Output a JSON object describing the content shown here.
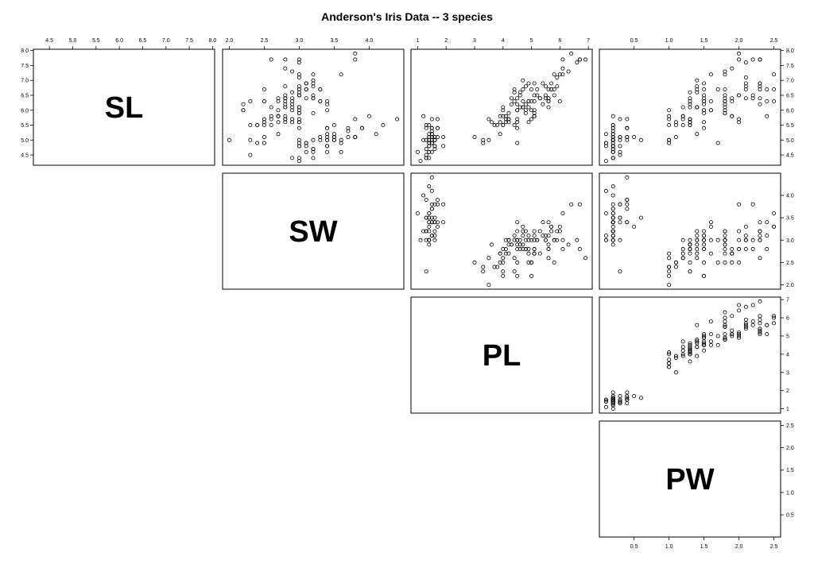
{
  "chart_data": {
    "type": "scatter",
    "title": "Anderson's Iris Data -- 3 species",
    "grid": false,
    "variables": [
      {
        "key": "SL",
        "label": "SL",
        "lim": [
          4.3,
          7.9
        ],
        "ticks": [
          4.5,
          5.0,
          5.5,
          6.0,
          6.5,
          7.0,
          7.5,
          8.0
        ],
        "tick_labels": [
          "4.5",
          "5.0",
          "5.5",
          "6.0",
          "6.5",
          "7.0",
          "7.5",
          "8.0"
        ]
      },
      {
        "key": "SW",
        "label": "SW",
        "lim": [
          2.0,
          4.4
        ],
        "ticks": [
          2.0,
          2.5,
          3.0,
          3.5,
          4.0
        ],
        "tick_labels": [
          "2.0",
          "2.5",
          "3.0",
          "3.5",
          "4.0"
        ]
      },
      {
        "key": "PL",
        "label": "PL",
        "lim": [
          1.0,
          6.9
        ],
        "ticks": [
          1,
          2,
          3,
          4,
          5,
          6,
          7
        ],
        "tick_labels": [
          "1",
          "2",
          "3",
          "4",
          "5",
          "6",
          "7"
        ]
      },
      {
        "key": "PW",
        "label": "PW",
        "lim": [
          0.1,
          2.5
        ],
        "ticks": [
          0.5,
          1.0,
          1.5,
          2.0,
          2.5
        ],
        "tick_labels": [
          "0.5",
          "1.0",
          "1.5",
          "2.0",
          "2.5"
        ]
      }
    ],
    "observations": [
      [
        5.1,
        3.5,
        1.4,
        0.2
      ],
      [
        4.9,
        3.0,
        1.4,
        0.2
      ],
      [
        4.7,
        3.2,
        1.3,
        0.2
      ],
      [
        4.6,
        3.1,
        1.5,
        0.2
      ],
      [
        5.0,
        3.6,
        1.4,
        0.2
      ],
      [
        5.4,
        3.9,
        1.7,
        0.4
      ],
      [
        4.6,
        3.4,
        1.4,
        0.3
      ],
      [
        5.0,
        3.4,
        1.5,
        0.2
      ],
      [
        4.4,
        2.9,
        1.4,
        0.2
      ],
      [
        4.9,
        3.1,
        1.5,
        0.1
      ],
      [
        5.4,
        3.7,
        1.5,
        0.2
      ],
      [
        4.8,
        3.4,
        1.6,
        0.2
      ],
      [
        4.8,
        3.0,
        1.4,
        0.1
      ],
      [
        4.3,
        3.0,
        1.1,
        0.1
      ],
      [
        5.8,
        4.0,
        1.2,
        0.2
      ],
      [
        5.7,
        4.4,
        1.5,
        0.4
      ],
      [
        5.4,
        3.9,
        1.3,
        0.4
      ],
      [
        5.1,
        3.5,
        1.4,
        0.3
      ],
      [
        5.7,
        3.8,
        1.7,
        0.3
      ],
      [
        5.1,
        3.8,
        1.5,
        0.3
      ],
      [
        5.4,
        3.4,
        1.7,
        0.2
      ],
      [
        5.1,
        3.7,
        1.5,
        0.4
      ],
      [
        4.6,
        3.6,
        1.0,
        0.2
      ],
      [
        5.1,
        3.3,
        1.7,
        0.5
      ],
      [
        4.8,
        3.4,
        1.9,
        0.2
      ],
      [
        5.0,
        3.0,
        1.6,
        0.2
      ],
      [
        5.0,
        3.4,
        1.6,
        0.4
      ],
      [
        5.2,
        3.5,
        1.5,
        0.2
      ],
      [
        5.2,
        3.4,
        1.4,
        0.2
      ],
      [
        4.7,
        3.2,
        1.6,
        0.2
      ],
      [
        4.8,
        3.1,
        1.6,
        0.2
      ],
      [
        5.4,
        3.4,
        1.5,
        0.4
      ],
      [
        5.2,
        4.1,
        1.5,
        0.1
      ],
      [
        5.5,
        4.2,
        1.4,
        0.2
      ],
      [
        4.9,
        3.1,
        1.5,
        0.2
      ],
      [
        5.0,
        3.2,
        1.2,
        0.2
      ],
      [
        5.5,
        3.5,
        1.3,
        0.2
      ],
      [
        4.9,
        3.6,
        1.4,
        0.1
      ],
      [
        4.4,
        3.0,
        1.3,
        0.2
      ],
      [
        5.1,
        3.4,
        1.5,
        0.2
      ],
      [
        5.0,
        3.5,
        1.3,
        0.3
      ],
      [
        4.5,
        2.3,
        1.3,
        0.3
      ],
      [
        4.4,
        3.2,
        1.3,
        0.2
      ],
      [
        5.0,
        3.5,
        1.6,
        0.6
      ],
      [
        5.1,
        3.8,
        1.9,
        0.4
      ],
      [
        4.8,
        3.0,
        1.4,
        0.3
      ],
      [
        5.1,
        3.8,
        1.6,
        0.2
      ],
      [
        4.6,
        3.2,
        1.4,
        0.2
      ],
      [
        5.3,
        3.7,
        1.5,
        0.2
      ],
      [
        5.0,
        3.3,
        1.4,
        0.2
      ],
      [
        7.0,
        3.2,
        4.7,
        1.4
      ],
      [
        6.4,
        3.2,
        4.5,
        1.5
      ],
      [
        6.9,
        3.1,
        4.9,
        1.5
      ],
      [
        5.5,
        2.3,
        4.0,
        1.3
      ],
      [
        6.5,
        2.8,
        4.6,
        1.5
      ],
      [
        5.7,
        2.8,
        4.5,
        1.3
      ],
      [
        6.3,
        3.3,
        4.7,
        1.6
      ],
      [
        4.9,
        2.4,
        3.3,
        1.0
      ],
      [
        6.6,
        2.9,
        4.6,
        1.3
      ],
      [
        5.2,
        2.7,
        3.9,
        1.4
      ],
      [
        5.0,
        2.0,
        3.5,
        1.0
      ],
      [
        5.9,
        3.0,
        4.2,
        1.5
      ],
      [
        6.0,
        2.2,
        4.0,
        1.0
      ],
      [
        6.1,
        2.9,
        4.7,
        1.4
      ],
      [
        5.6,
        2.9,
        3.6,
        1.3
      ],
      [
        6.7,
        3.1,
        4.4,
        1.4
      ],
      [
        5.6,
        3.0,
        4.5,
        1.5
      ],
      [
        5.8,
        2.7,
        4.1,
        1.0
      ],
      [
        6.2,
        2.2,
        4.5,
        1.5
      ],
      [
        5.6,
        2.5,
        3.9,
        1.1
      ],
      [
        5.9,
        3.2,
        4.8,
        1.8
      ],
      [
        6.1,
        2.8,
        4.0,
        1.3
      ],
      [
        6.3,
        2.5,
        4.9,
        1.5
      ],
      [
        6.1,
        2.8,
        4.7,
        1.2
      ],
      [
        6.4,
        2.9,
        4.3,
        1.3
      ],
      [
        6.6,
        3.0,
        4.4,
        1.4
      ],
      [
        6.8,
        2.8,
        4.8,
        1.4
      ],
      [
        6.7,
        3.0,
        5.0,
        1.7
      ],
      [
        6.0,
        2.9,
        4.5,
        1.5
      ],
      [
        5.7,
        2.6,
        3.5,
        1.0
      ],
      [
        5.5,
        2.4,
        3.8,
        1.1
      ],
      [
        5.5,
        2.4,
        3.7,
        1.0
      ],
      [
        5.8,
        2.7,
        3.9,
        1.2
      ],
      [
        6.0,
        2.7,
        5.1,
        1.6
      ],
      [
        5.4,
        3.0,
        4.5,
        1.5
      ],
      [
        6.0,
        3.4,
        4.5,
        1.6
      ],
      [
        6.7,
        3.1,
        4.7,
        1.5
      ],
      [
        6.3,
        2.3,
        4.4,
        1.3
      ],
      [
        5.6,
        3.0,
        4.1,
        1.3
      ],
      [
        5.5,
        2.5,
        4.0,
        1.3
      ],
      [
        5.5,
        2.6,
        4.4,
        1.2
      ],
      [
        6.1,
        3.0,
        4.6,
        1.4
      ],
      [
        5.8,
        2.6,
        4.0,
        1.2
      ],
      [
        5.0,
        2.3,
        3.3,
        1.0
      ],
      [
        5.6,
        2.7,
        4.2,
        1.3
      ],
      [
        5.7,
        3.0,
        4.2,
        1.2
      ],
      [
        5.7,
        2.9,
        4.2,
        1.3
      ],
      [
        6.2,
        2.9,
        4.3,
        1.3
      ],
      [
        5.1,
        2.5,
        3.0,
        1.1
      ],
      [
        5.7,
        2.8,
        4.1,
        1.3
      ],
      [
        6.3,
        3.3,
        6.0,
        2.5
      ],
      [
        5.8,
        2.7,
        5.1,
        1.9
      ],
      [
        7.1,
        3.0,
        5.9,
        2.1
      ],
      [
        6.3,
        2.9,
        5.6,
        1.8
      ],
      [
        6.5,
        3.0,
        5.8,
        2.2
      ],
      [
        7.6,
        3.0,
        6.6,
        2.1
      ],
      [
        4.9,
        2.5,
        4.5,
        1.7
      ],
      [
        7.3,
        2.9,
        6.3,
        1.8
      ],
      [
        6.7,
        2.5,
        5.8,
        1.8
      ],
      [
        7.2,
        3.6,
        6.1,
        2.5
      ],
      [
        6.5,
        3.2,
        5.1,
        2.0
      ],
      [
        6.4,
        2.7,
        5.3,
        1.9
      ],
      [
        6.8,
        3.0,
        5.5,
        2.1
      ],
      [
        5.7,
        2.5,
        5.0,
        2.0
      ],
      [
        5.8,
        2.8,
        5.1,
        2.4
      ],
      [
        6.4,
        3.2,
        5.3,
        2.3
      ],
      [
        6.5,
        3.0,
        5.5,
        1.8
      ],
      [
        7.7,
        3.8,
        6.7,
        2.2
      ],
      [
        7.7,
        2.6,
        6.9,
        2.3
      ],
      [
        6.0,
        2.2,
        5.0,
        1.5
      ],
      [
        6.9,
        3.2,
        5.7,
        2.3
      ],
      [
        5.6,
        2.8,
        4.9,
        2.0
      ],
      [
        7.7,
        2.8,
        6.7,
        2.0
      ],
      [
        6.3,
        2.7,
        4.9,
        1.8
      ],
      [
        6.7,
        3.3,
        5.7,
        2.1
      ],
      [
        7.2,
        3.2,
        6.0,
        1.8
      ],
      [
        6.2,
        2.8,
        4.8,
        1.8
      ],
      [
        6.1,
        3.0,
        4.9,
        1.8
      ],
      [
        6.4,
        2.8,
        5.6,
        2.1
      ],
      [
        7.2,
        3.0,
        5.8,
        1.6
      ],
      [
        7.4,
        2.8,
        6.1,
        1.9
      ],
      [
        7.9,
        3.8,
        6.4,
        2.0
      ],
      [
        6.4,
        2.8,
        5.6,
        2.2
      ],
      [
        6.3,
        2.8,
        5.1,
        1.5
      ],
      [
        6.1,
        2.6,
        5.6,
        1.4
      ],
      [
        7.7,
        3.0,
        6.1,
        2.3
      ],
      [
        6.3,
        3.4,
        5.6,
        2.4
      ],
      [
        6.4,
        3.1,
        5.5,
        1.8
      ],
      [
        6.0,
        3.0,
        4.8,
        1.8
      ],
      [
        6.9,
        3.1,
        5.4,
        2.1
      ],
      [
        6.7,
        3.1,
        5.6,
        2.4
      ],
      [
        6.9,
        3.1,
        5.1,
        2.3
      ],
      [
        5.8,
        2.7,
        5.1,
        1.9
      ],
      [
        6.8,
        3.2,
        5.9,
        2.3
      ],
      [
        6.7,
        3.3,
        5.7,
        2.5
      ],
      [
        6.7,
        3.0,
        5.2,
        2.3
      ],
      [
        6.3,
        2.5,
        5.0,
        1.9
      ],
      [
        6.5,
        3.0,
        5.2,
        2.0
      ],
      [
        6.2,
        3.4,
        5.4,
        2.3
      ],
      [
        5.9,
        3.0,
        5.1,
        1.8
      ]
    ]
  }
}
